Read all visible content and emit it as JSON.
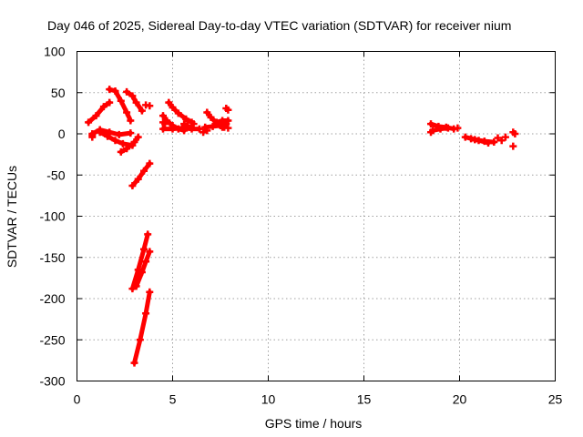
{
  "chart_data": {
    "type": "scatter",
    "title": "Day 046 of 2025, Sidereal Day-to-day VTEC variation (SDTVAR) for receiver nium",
    "xlabel": "GPS time / hours",
    "ylabel": "SDTVAR / TECUs",
    "xlim": [
      0,
      25
    ],
    "ylim": [
      -300,
      100
    ],
    "xticks": [
      0,
      5,
      10,
      15,
      20,
      25
    ],
    "yticks": [
      -300,
      -250,
      -200,
      -150,
      -100,
      -50,
      0,
      50,
      100
    ],
    "grid": true,
    "marker": "+",
    "color": "#ff0000",
    "series": [
      {
        "name": "satellite tracks",
        "segments": [
          [
            [
              0.6,
              14
            ],
            [
              1.0,
              22
            ],
            [
              1.4,
              33
            ],
            [
              1.7,
              38
            ]
          ],
          [
            [
              1.7,
              54
            ],
            [
              2.0,
              52
            ],
            [
              2.3,
              40
            ],
            [
              2.6,
              26
            ],
            [
              2.8,
              16
            ]
          ],
          [
            [
              2.6,
              51
            ],
            [
              2.9,
              46
            ],
            [
              3.1,
              38
            ],
            [
              3.4,
              28
            ]
          ],
          [
            [
              0.8,
              0
            ],
            [
              1.2,
              5
            ],
            [
              1.7,
              2
            ],
            [
              2.2,
              -1
            ],
            [
              2.8,
              1
            ]
          ],
          [
            [
              1.2,
              2
            ],
            [
              1.6,
              -3
            ],
            [
              2.0,
              -8
            ],
            [
              2.4,
              -12
            ],
            [
              2.9,
              -14
            ]
          ],
          [
            [
              2.3,
              -22
            ],
            [
              2.6,
              -18
            ],
            [
              3.0,
              -10
            ],
            [
              3.2,
              -4
            ]
          ],
          [
            [
              2.9,
              -63
            ],
            [
              3.2,
              -55
            ],
            [
              3.5,
              -45
            ],
            [
              3.8,
              -36
            ]
          ],
          [
            [
              2.9,
              -188
            ],
            [
              3.2,
              -165
            ],
            [
              3.5,
              -140
            ],
            [
              3.7,
              -122
            ]
          ],
          [
            [
              3.1,
              -185
            ],
            [
              3.4,
              -168
            ],
            [
              3.6,
              -155
            ],
            [
              3.8,
              -143
            ]
          ],
          [
            [
              3.0,
              -278
            ],
            [
              3.3,
              -250
            ],
            [
              3.6,
              -218
            ],
            [
              3.8,
              -192
            ]
          ],
          [
            [
              4.5,
              22
            ],
            [
              4.7,
              16
            ],
            [
              5.0,
              10
            ],
            [
              5.3,
              6
            ],
            [
              5.6,
              4
            ]
          ],
          [
            [
              4.8,
              38
            ],
            [
              5.0,
              32
            ],
            [
              5.3,
              25
            ],
            [
              5.7,
              18
            ],
            [
              6.0,
              14
            ]
          ],
          [
            [
              4.5,
              6
            ],
            [
              5.0,
              6
            ],
            [
              5.5,
              7
            ],
            [
              6.0,
              6
            ],
            [
              6.4,
              6
            ]
          ],
          [
            [
              6.8,
              26
            ],
            [
              7.0,
              20
            ],
            [
              7.3,
              13
            ],
            [
              7.6,
              8
            ]
          ],
          [
            [
              6.7,
              8
            ],
            [
              7.1,
              9
            ],
            [
              7.5,
              10
            ],
            [
              7.8,
              12
            ]
          ],
          [
            [
              7.3,
              14
            ],
            [
              7.6,
              16
            ],
            [
              7.9,
              16
            ]
          ],
          [
            [
              18.5,
              12
            ],
            [
              18.9,
              9
            ],
            [
              19.3,
              8
            ],
            [
              19.7,
              6
            ]
          ],
          [
            [
              18.6,
              4
            ],
            [
              19.0,
              6
            ],
            [
              19.4,
              7
            ]
          ],
          [
            [
              20.3,
              -4
            ],
            [
              20.8,
              -7
            ],
            [
              21.3,
              -9
            ],
            [
              21.8,
              -10
            ]
          ],
          [
            [
              20.6,
              -6
            ],
            [
              21.0,
              -8
            ],
            [
              21.5,
              -11
            ]
          ]
        ],
        "points": [
          [
            0.8,
            -2
          ],
          [
            0.8,
            -4
          ],
          [
            3.6,
            35
          ],
          [
            3.8,
            34
          ],
          [
            4.5,
            14
          ],
          [
            4.6,
            12
          ],
          [
            5.6,
            12
          ],
          [
            5.8,
            10
          ],
          [
            6.1,
            12
          ],
          [
            6.6,
            2
          ],
          [
            6.8,
            4
          ],
          [
            7.7,
            8
          ],
          [
            7.9,
            7
          ],
          [
            7.9,
            29
          ],
          [
            7.8,
            31
          ],
          [
            18.5,
            2
          ],
          [
            19.9,
            7
          ],
          [
            22.0,
            -5
          ],
          [
            22.2,
            -8
          ],
          [
            22.4,
            -4
          ],
          [
            22.8,
            2
          ],
          [
            22.9,
            0
          ],
          [
            22.8,
            -15
          ]
        ]
      }
    ]
  }
}
